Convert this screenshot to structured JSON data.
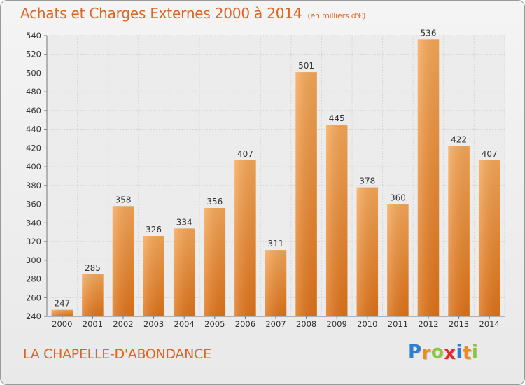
{
  "chart_data": {
    "type": "bar",
    "title": "Achats et Charges Externes 2000 à 2014",
    "subtitle": "(en milliers d'€)",
    "categories": [
      "2000",
      "2001",
      "2002",
      "2003",
      "2004",
      "2005",
      "2006",
      "2007",
      "2008",
      "2009",
      "2010",
      "2011",
      "2012",
      "2013",
      "2014"
    ],
    "values": [
      247,
      285,
      358,
      326,
      334,
      356,
      407,
      311,
      501,
      445,
      378,
      360,
      536,
      422,
      407
    ],
    "ylim": [
      240,
      540
    ],
    "yticks": [
      240,
      260,
      280,
      300,
      320,
      340,
      360,
      380,
      400,
      420,
      440,
      460,
      480,
      500,
      520,
      540
    ],
    "grid": true,
    "bar_color": "#f28c2a",
    "xlabel": "",
    "ylabel": ""
  },
  "footer": {
    "commune": "LA CHAPELLE-D'ABONDANCE",
    "logo_letters": [
      {
        "ch": "P",
        "color": "#2e7fd0"
      },
      {
        "ch": "r",
        "color": "#ef8a1e"
      },
      {
        "ch": "o",
        "color": "#8cc63f"
      },
      {
        "ch": "x",
        "color": "#e5262f"
      },
      {
        "ch": "i",
        "color": "#2e7fd0"
      },
      {
        "ch": "t",
        "color": "#ef8a1e"
      },
      {
        "ch": "i",
        "color": "#8cc63f"
      }
    ]
  }
}
